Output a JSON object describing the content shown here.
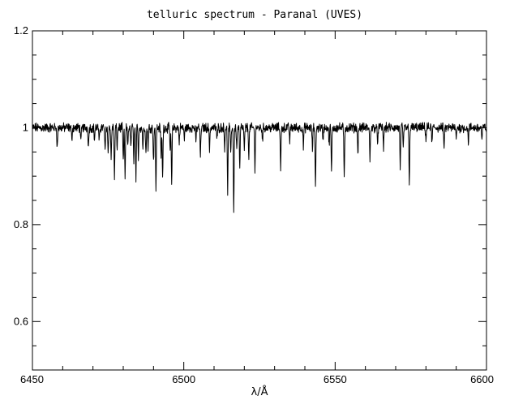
{
  "chart_data": {
    "type": "line",
    "title": "telluric spectrum - Paranal (UVES)",
    "xlabel": "λ/Å",
    "ylabel": "",
    "xlim": [
      6450,
      6600
    ],
    "ylim": [
      0.5,
      1.2
    ],
    "x_ticks": [
      6450,
      6500,
      6550,
      6600
    ],
    "x_tick_labels": [
      "6450",
      "6500",
      "6550",
      "6600"
    ],
    "y_ticks": [
      0.6,
      0.8,
      1.0,
      1.2
    ],
    "y_tick_labels": [
      "0.6",
      "0.8",
      "1",
      "1.2"
    ],
    "grid": false,
    "continuum": 1.0,
    "line_color": "#000000",
    "absorption_lines": [
      {
        "x": 6458.2,
        "y": 0.958
      },
      {
        "x": 6463.0,
        "y": 0.975
      },
      {
        "x": 6466.0,
        "y": 0.967
      },
      {
        "x": 6468.5,
        "y": 0.96
      },
      {
        "x": 6470.5,
        "y": 0.975
      },
      {
        "x": 6472.0,
        "y": 0.97
      },
      {
        "x": 6474.0,
        "y": 0.948
      },
      {
        "x": 6475.0,
        "y": 0.95
      },
      {
        "x": 6476.0,
        "y": 0.935
      },
      {
        "x": 6477.1,
        "y": 0.892
      },
      {
        "x": 6478.0,
        "y": 0.96
      },
      {
        "x": 6480.0,
        "y": 0.928
      },
      {
        "x": 6480.6,
        "y": 0.893
      },
      {
        "x": 6481.5,
        "y": 0.965
      },
      {
        "x": 6482.5,
        "y": 0.96
      },
      {
        "x": 6483.5,
        "y": 0.935
      },
      {
        "x": 6484.2,
        "y": 0.896
      },
      {
        "x": 6485.0,
        "y": 0.94
      },
      {
        "x": 6486.5,
        "y": 0.958
      },
      {
        "x": 6487.5,
        "y": 0.945
      },
      {
        "x": 6488.2,
        "y": 0.96
      },
      {
        "x": 6490.0,
        "y": 0.93
      },
      {
        "x": 6490.8,
        "y": 0.875
      },
      {
        "x": 6492.5,
        "y": 0.94
      },
      {
        "x": 6493.0,
        "y": 0.893
      },
      {
        "x": 6495.5,
        "y": 0.955
      },
      {
        "x": 6496.0,
        "y": 0.878
      },
      {
        "x": 6498.5,
        "y": 0.97
      },
      {
        "x": 6500.2,
        "y": 0.975
      },
      {
        "x": 6504.0,
        "y": 0.972
      },
      {
        "x": 6505.5,
        "y": 0.94
      },
      {
        "x": 6508.5,
        "y": 0.955
      },
      {
        "x": 6511.0,
        "y": 0.975
      },
      {
        "x": 6513.5,
        "y": 0.96
      },
      {
        "x": 6514.5,
        "y": 0.87
      },
      {
        "x": 6515.5,
        "y": 0.94
      },
      {
        "x": 6516.5,
        "y": 0.826
      },
      {
        "x": 6517.5,
        "y": 0.955
      },
      {
        "x": 6518.5,
        "y": 0.915
      },
      {
        "x": 6520.0,
        "y": 0.95
      },
      {
        "x": 6521.5,
        "y": 0.94
      },
      {
        "x": 6523.5,
        "y": 0.918
      },
      {
        "x": 6526.0,
        "y": 0.975
      },
      {
        "x": 6532.0,
        "y": 0.912
      },
      {
        "x": 6535.0,
        "y": 0.973
      },
      {
        "x": 6539.5,
        "y": 0.96
      },
      {
        "x": 6542.5,
        "y": 0.955
      },
      {
        "x": 6543.5,
        "y": 0.872
      },
      {
        "x": 6546.0,
        "y": 0.975
      },
      {
        "x": 6548.0,
        "y": 0.964
      },
      {
        "x": 6548.8,
        "y": 0.906
      },
      {
        "x": 6553.0,
        "y": 0.895
      },
      {
        "x": 6557.5,
        "y": 0.945
      },
      {
        "x": 6561.5,
        "y": 0.932
      },
      {
        "x": 6564.0,
        "y": 0.968
      },
      {
        "x": 6566.0,
        "y": 0.958
      },
      {
        "x": 6571.5,
        "y": 0.915
      },
      {
        "x": 6572.5,
        "y": 0.957
      },
      {
        "x": 6574.5,
        "y": 0.886
      },
      {
        "x": 6580.0,
        "y": 0.975
      },
      {
        "x": 6582.0,
        "y": 0.97
      },
      {
        "x": 6586.0,
        "y": 0.955
      },
      {
        "x": 6590.0,
        "y": 0.975
      },
      {
        "x": 6594.0,
        "y": 0.97
      },
      {
        "x": 6598.5,
        "y": 0.975
      }
    ]
  }
}
